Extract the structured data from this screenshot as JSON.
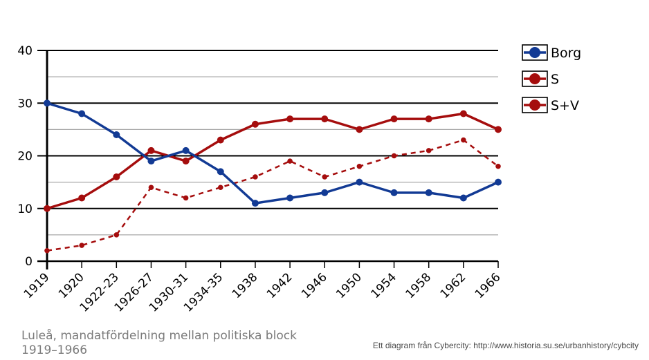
{
  "chart_data": {
    "type": "line",
    "categories": [
      "1919",
      "1920",
      "1922-23",
      "1926-27",
      "1930-31",
      "1934-35",
      "1938",
      "1942",
      "1946",
      "1950",
      "1954",
      "1958",
      "1962",
      "1966"
    ],
    "series": [
      {
        "name": "Borg",
        "values": [
          30,
          28,
          24,
          19,
          21,
          17,
          11,
          12,
          13,
          15,
          13,
          13,
          12,
          15
        ],
        "color": "#123a94",
        "line_style": "solid"
      },
      {
        "name": "S",
        "values": [
          2,
          3,
          5,
          14,
          12,
          14,
          16,
          19,
          16,
          18,
          20,
          21,
          23,
          18
        ],
        "color": "#a50d0d",
        "line_style": "dashed"
      },
      {
        "name": "S+V",
        "values": [
          10,
          12,
          16,
          21,
          19,
          23,
          26,
          27,
          27,
          25,
          27,
          27,
          28,
          25
        ],
        "color": "#a50d0d",
        "line_style": "solid"
      }
    ],
    "y_ticks": [
      0,
      10,
      20,
      30,
      40
    ],
    "ylim": [
      0,
      40
    ],
    "grid": true,
    "legend_position": "right",
    "title": "Luleå, mandatfördelning mellan politiska block 1919–1966",
    "xlabel": "",
    "ylabel": ""
  },
  "credit": "Ett diagram från Cybercity: http://www.historia.su.se/urbanhistory/cybcity"
}
